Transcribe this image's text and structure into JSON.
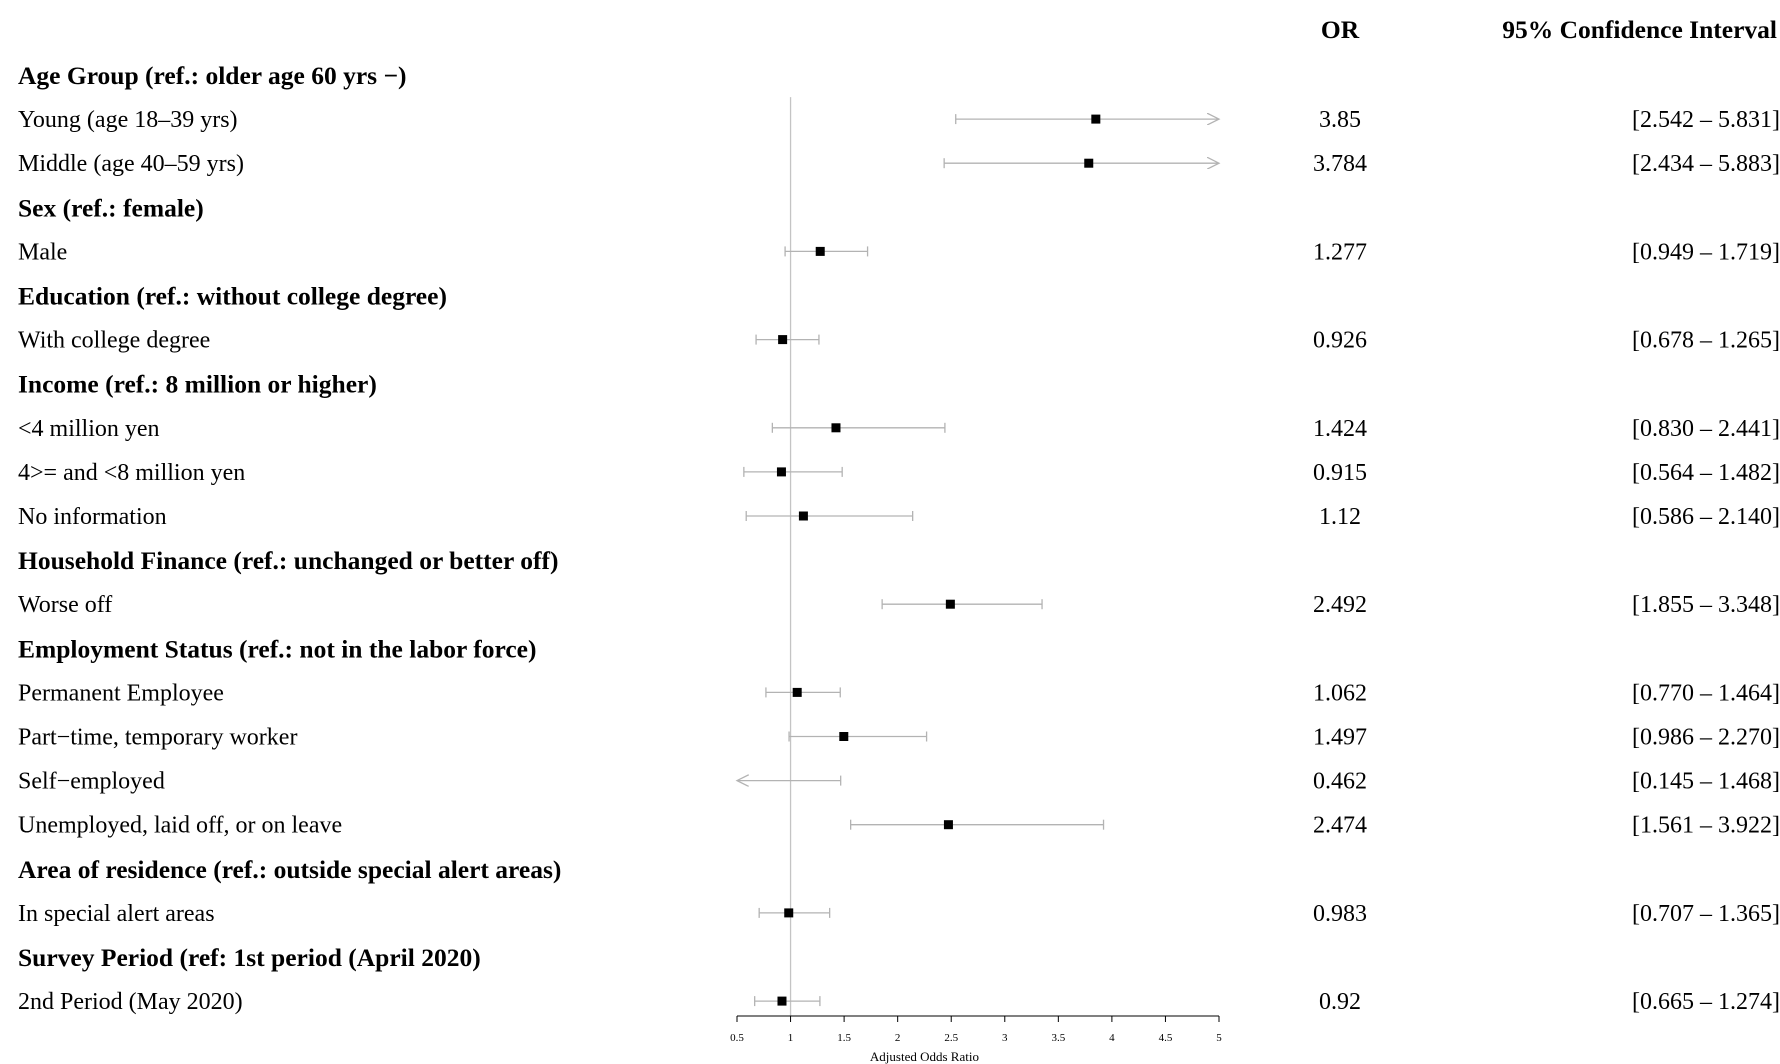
{
  "chart_data": {
    "type": "forest",
    "header": {
      "or_label": "OR",
      "ci_label": "95% Confidence Interval"
    },
    "x_axis": {
      "label": "Adjusted Odds Ratio",
      "lim": [
        0.5,
        5
      ],
      "ticks": [
        0.5,
        1,
        1.5,
        2,
        2.5,
        3,
        3.5,
        4,
        4.5,
        5
      ],
      "tick_labels": [
        "0.5",
        "1",
        "1.5",
        "2",
        "2.5",
        "3",
        "3.5",
        "4",
        "4.5",
        "5"
      ],
      "reference_line": 1
    },
    "colors": {
      "marker": "#000000",
      "ci_line": "#b3b3b3",
      "ref_line": "#c4c4c4"
    },
    "rows": [
      {
        "kind": "group",
        "label": "Age Group (ref.: older age 60 yrs −)"
      },
      {
        "kind": "item",
        "label": "Young (age 18–39 yrs)",
        "or": 3.85,
        "lo": 2.542,
        "hi": 5.831,
        "or_text": "3.85",
        "ci_text": "[2.542 – 5.831]"
      },
      {
        "kind": "item",
        "label": "Middle (age 40–59 yrs)",
        "or": 3.784,
        "lo": 2.434,
        "hi": 5.883,
        "or_text": "3.784",
        "ci_text": "[2.434 – 5.883]"
      },
      {
        "kind": "group",
        "label": "Sex (ref.: female)"
      },
      {
        "kind": "item",
        "label": "Male",
        "or": 1.277,
        "lo": 0.949,
        "hi": 1.719,
        "or_text": "1.277",
        "ci_text": "[0.949 – 1.719]"
      },
      {
        "kind": "group",
        "label": "Education (ref.: without college degree)"
      },
      {
        "kind": "item",
        "label": "With college degree",
        "or": 0.926,
        "lo": 0.678,
        "hi": 1.265,
        "or_text": "0.926",
        "ci_text": "[0.678 – 1.265]"
      },
      {
        "kind": "group",
        "label": "Income (ref.: 8 million or higher)"
      },
      {
        "kind": "item",
        "label": "<4 million yen",
        "or": 1.424,
        "lo": 0.83,
        "hi": 2.441,
        "or_text": "1.424",
        "ci_text": "[0.830 – 2.441]"
      },
      {
        "kind": "item",
        "label": "4>= and <8 million yen",
        "or": 0.915,
        "lo": 0.564,
        "hi": 1.482,
        "or_text": "0.915",
        "ci_text": "[0.564 – 1.482]"
      },
      {
        "kind": "item",
        "label": "No information",
        "or": 1.12,
        "lo": 0.586,
        "hi": 2.14,
        "or_text": "1.12",
        "ci_text": "[0.586 – 2.140]"
      },
      {
        "kind": "group",
        "label": "Household Finance (ref.: unchanged or better off)"
      },
      {
        "kind": "item",
        "label": "Worse off",
        "or": 2.492,
        "lo": 1.855,
        "hi": 3.348,
        "or_text": "2.492",
        "ci_text": "[1.855 – 3.348]"
      },
      {
        "kind": "group",
        "label": "Employment Status (ref.: not in the labor force)"
      },
      {
        "kind": "item",
        "label": "Permanent Employee",
        "or": 1.062,
        "lo": 0.77,
        "hi": 1.464,
        "or_text": "1.062",
        "ci_text": "[0.770 – 1.464]"
      },
      {
        "kind": "item",
        "label": "Part−time, temporary worker",
        "or": 1.497,
        "lo": 0.986,
        "hi": 2.27,
        "or_text": "1.497",
        "ci_text": "[0.986 – 2.270]"
      },
      {
        "kind": "item",
        "label": "Self−employed",
        "or": 0.462,
        "lo": 0.145,
        "hi": 1.468,
        "or_text": "0.462",
        "ci_text": "[0.145 – 1.468]"
      },
      {
        "kind": "item",
        "label": "Unemployed, laid off, or on leave",
        "or": 2.474,
        "lo": 1.561,
        "hi": 3.922,
        "or_text": "2.474",
        "ci_text": "[1.561 – 3.922]"
      },
      {
        "kind": "group",
        "label": "Area of residence (ref.: outside special alert areas)"
      },
      {
        "kind": "item",
        "label": "In special alert areas",
        "or": 0.983,
        "lo": 0.707,
        "hi": 1.365,
        "or_text": "0.983",
        "ci_text": "[0.707 – 1.365]"
      },
      {
        "kind": "group",
        "label": "Survey Period (ref: 1st period (April 2020)"
      },
      {
        "kind": "item",
        "label": "2nd Period (May 2020)",
        "or": 0.92,
        "lo": 0.665,
        "hi": 1.274,
        "or_text": "0.92",
        "ci_text": "[0.665 – 1.274]"
      }
    ]
  }
}
